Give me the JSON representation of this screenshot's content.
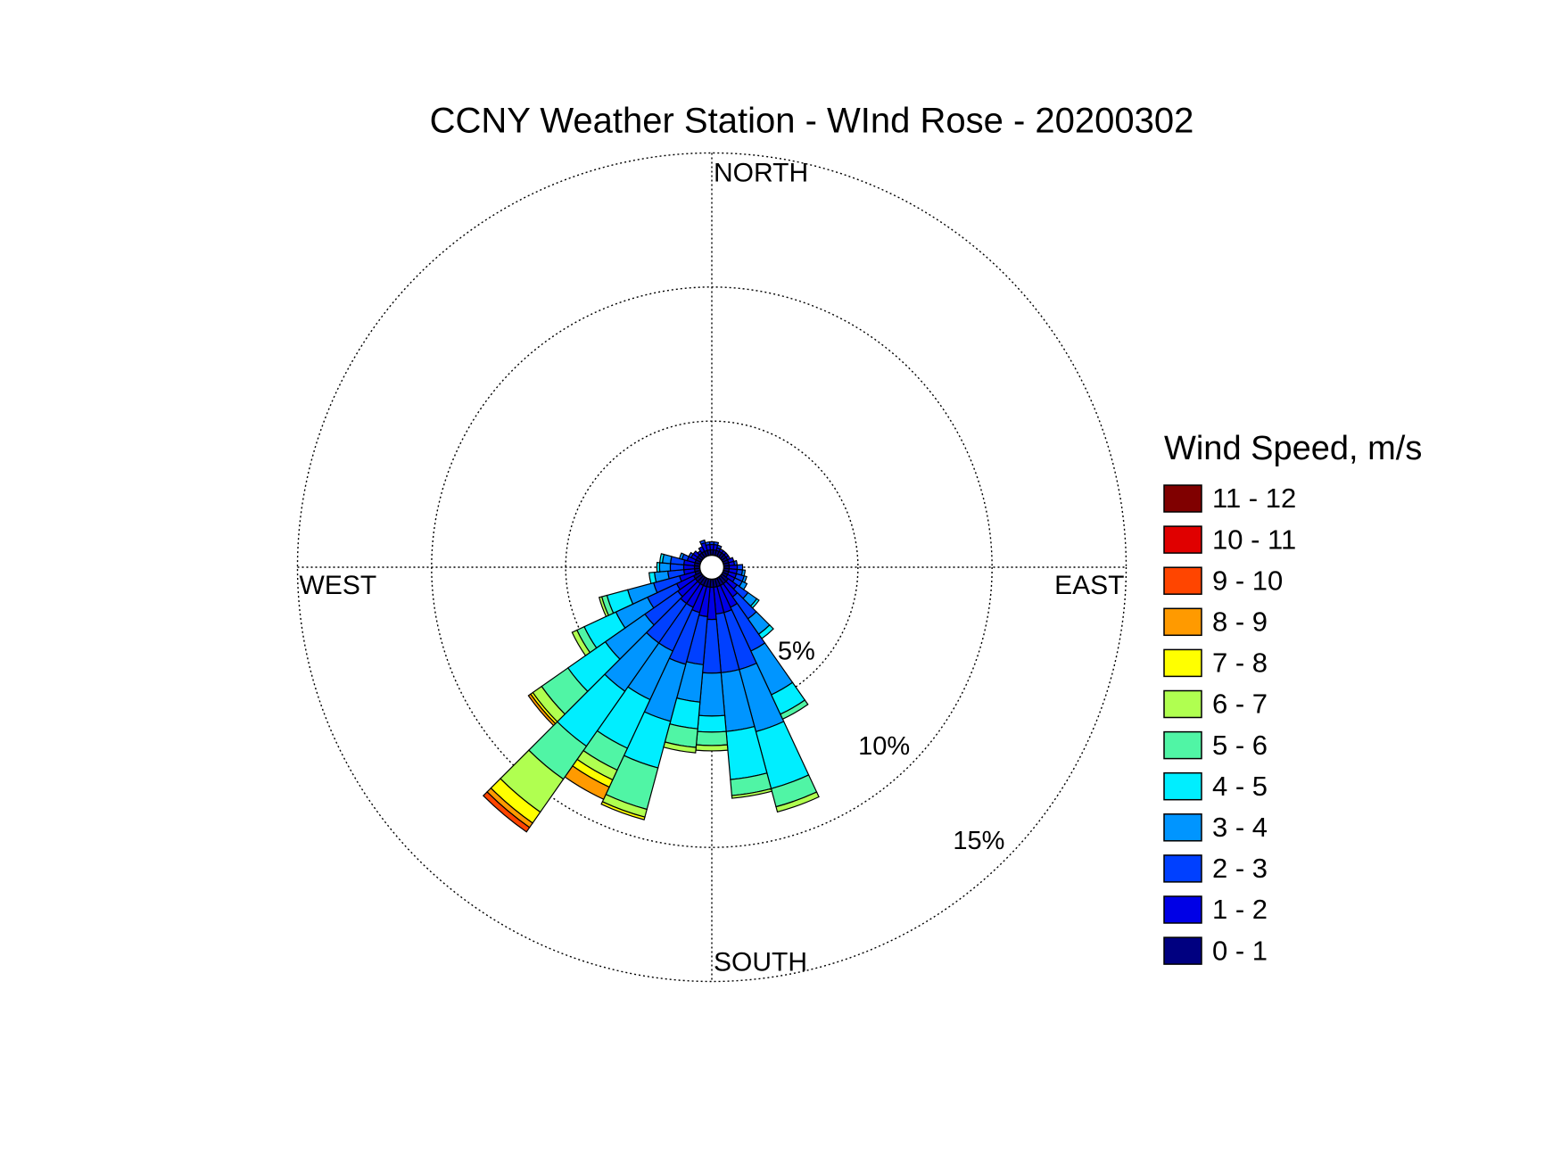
{
  "chart_data": {
    "type": "windrose",
    "title": "CCNY Weather Station - WInd Rose - 20200302",
    "compass": {
      "north": "NORTH",
      "east": "EAST",
      "south": "SOUTH",
      "west": "WEST"
    },
    "legend_title": "Wind Speed, m/s",
    "directions": [
      0,
      10,
      20,
      30,
      40,
      50,
      60,
      70,
      80,
      90,
      100,
      110,
      120,
      130,
      140,
      150,
      160,
      170,
      180,
      190,
      200,
      210,
      220,
      230,
      240,
      250,
      260,
      270,
      280,
      290,
      300,
      310,
      320,
      330,
      340,
      350
    ],
    "rlim": [
      0,
      15
    ],
    "rticks": [
      {
        "value": 5,
        "label": "5%"
      },
      {
        "value": 10,
        "label": "10%"
      },
      {
        "value": 15,
        "label": "15%"
      }
    ],
    "grid": true,
    "series": [
      {
        "name": "0 - 1",
        "color": "#000080",
        "values": [
          0.2,
          0.2,
          0.2,
          0.2,
          0.2,
          0.2,
          0.2,
          0.2,
          0.2,
          0.2,
          0.2,
          0.2,
          0.2,
          0.3,
          0.3,
          0.3,
          0.3,
          0.3,
          0.3,
          0.3,
          0.3,
          0.3,
          0.3,
          0.3,
          0.3,
          0.2,
          0.2,
          0.2,
          0.2,
          0.2,
          0.2,
          0.2,
          0.2,
          0.2,
          0.2,
          0.2
        ]
      },
      {
        "name": "1 - 2",
        "color": "#0000e6",
        "values": [
          0.2,
          0.2,
          0.1,
          0.1,
          0.1,
          0.1,
          0.1,
          0.2,
          0.2,
          0.3,
          0.3,
          0.3,
          0.3,
          0.4,
          0.6,
          0.9,
          1.0,
          1.0,
          1.2,
          1.1,
          1.0,
          0.9,
          0.9,
          0.8,
          0.7,
          0.6,
          0.4,
          0.4,
          0.4,
          0.3,
          0.2,
          0.2,
          0.1,
          0.2,
          0.3,
          0.2
        ]
      },
      {
        "name": "2 - 3",
        "color": "#0040ff",
        "values": [
          0.1,
          0.1,
          0.1,
          0,
          0,
          0,
          0,
          0,
          0.1,
          0.2,
          0.2,
          0.3,
          0.3,
          0.5,
          1.0,
          1.8,
          2.2,
          2.2,
          2.0,
          1.8,
          2.0,
          1.8,
          1.8,
          1.5,
          1.2,
          1.0,
          0.6,
          0.5,
          0.5,
          0.2,
          0.1,
          0,
          0,
          0,
          0.1,
          0.1
        ]
      },
      {
        "name": "3 - 4",
        "color": "#0095ff",
        "values": [
          0,
          0,
          0,
          0,
          0,
          0,
          0,
          0,
          0,
          0,
          0.1,
          0.1,
          0.2,
          0.4,
          0.7,
          1.8,
          2.4,
          2.2,
          1.6,
          1.4,
          2.2,
          2.0,
          2.2,
          1.8,
          1.3,
          1.0,
          0.5,
          0.4,
          0.3,
          0.1,
          0,
          0,
          0,
          0,
          0,
          0
        ]
      },
      {
        "name": "4 - 5",
        "color": "#00eeff",
        "values": [
          0,
          0,
          0,
          0,
          0,
          0,
          0,
          0,
          0,
          0,
          0,
          0,
          0,
          0.1,
          0.2,
          0.8,
          2.2,
          1.8,
          0.6,
          1.0,
          1.8,
          2.0,
          2.5,
          1.7,
          1.3,
          0.8,
          0.2,
          0.1,
          0.1,
          0,
          0,
          0,
          0,
          0,
          0,
          0
        ]
      },
      {
        "name": "5 - 6",
        "color": "#50f5a5",
        "values": [
          0,
          0,
          0,
          0,
          0,
          0,
          0,
          0,
          0,
          0,
          0,
          0,
          0,
          0,
          0,
          0.2,
          0.7,
          0.6,
          0.5,
          0.7,
          1.6,
          0.9,
          1.5,
          1.2,
          0.3,
          0.2,
          0,
          0,
          0,
          0,
          0,
          0,
          0,
          0,
          0,
          0
        ]
      },
      {
        "name": "6 - 7",
        "color": "#b0ff50",
        "values": [
          0,
          0,
          0,
          0,
          0,
          0,
          0,
          0,
          0,
          0,
          0,
          0,
          0,
          0,
          0,
          0,
          0.2,
          0.1,
          0.2,
          0.2,
          0.3,
          0.4,
          1.5,
          0.4,
          0.2,
          0.1,
          0,
          0,
          0,
          0,
          0,
          0,
          0,
          0,
          0,
          0
        ]
      },
      {
        "name": "7 - 8",
        "color": "#ffff00",
        "values": [
          0,
          0,
          0,
          0,
          0,
          0,
          0,
          0,
          0,
          0,
          0,
          0,
          0,
          0,
          0,
          0,
          0,
          0,
          0,
          0,
          0.1,
          0.3,
          0.5,
          0.1,
          0,
          0,
          0,
          0,
          0,
          0,
          0,
          0,
          0,
          0,
          0,
          0
        ]
      },
      {
        "name": "8 - 9",
        "color": "#ff9a00",
        "values": [
          0,
          0,
          0,
          0,
          0,
          0,
          0,
          0,
          0,
          0,
          0,
          0,
          0,
          0,
          0,
          0,
          0,
          0,
          0,
          0,
          0,
          0.5,
          0.2,
          0.1,
          0,
          0,
          0,
          0,
          0,
          0,
          0,
          0,
          0,
          0,
          0,
          0
        ]
      },
      {
        "name": "9 - 10",
        "color": "#ff4500",
        "values": [
          0,
          0,
          0,
          0,
          0,
          0,
          0,
          0,
          0,
          0,
          0,
          0,
          0,
          0,
          0,
          0,
          0,
          0,
          0,
          0,
          0,
          0,
          0.2,
          0,
          0,
          0,
          0,
          0,
          0,
          0,
          0,
          0,
          0,
          0,
          0,
          0
        ]
      },
      {
        "name": "10 - 11",
        "color": "#e00000",
        "values": [
          0,
          0,
          0,
          0,
          0,
          0,
          0,
          0,
          0,
          0,
          0,
          0,
          0,
          0,
          0,
          0,
          0,
          0,
          0,
          0,
          0,
          0,
          0,
          0,
          0,
          0,
          0,
          0,
          0,
          0,
          0,
          0,
          0,
          0,
          0,
          0
        ]
      },
      {
        "name": "11 - 12",
        "color": "#800000",
        "values": [
          0,
          0,
          0,
          0,
          0,
          0,
          0,
          0,
          0,
          0,
          0,
          0,
          0,
          0,
          0,
          0,
          0,
          0,
          0,
          0,
          0,
          0,
          0,
          0,
          0,
          0,
          0,
          0,
          0,
          0,
          0,
          0,
          0,
          0,
          0,
          0
        ]
      }
    ]
  }
}
